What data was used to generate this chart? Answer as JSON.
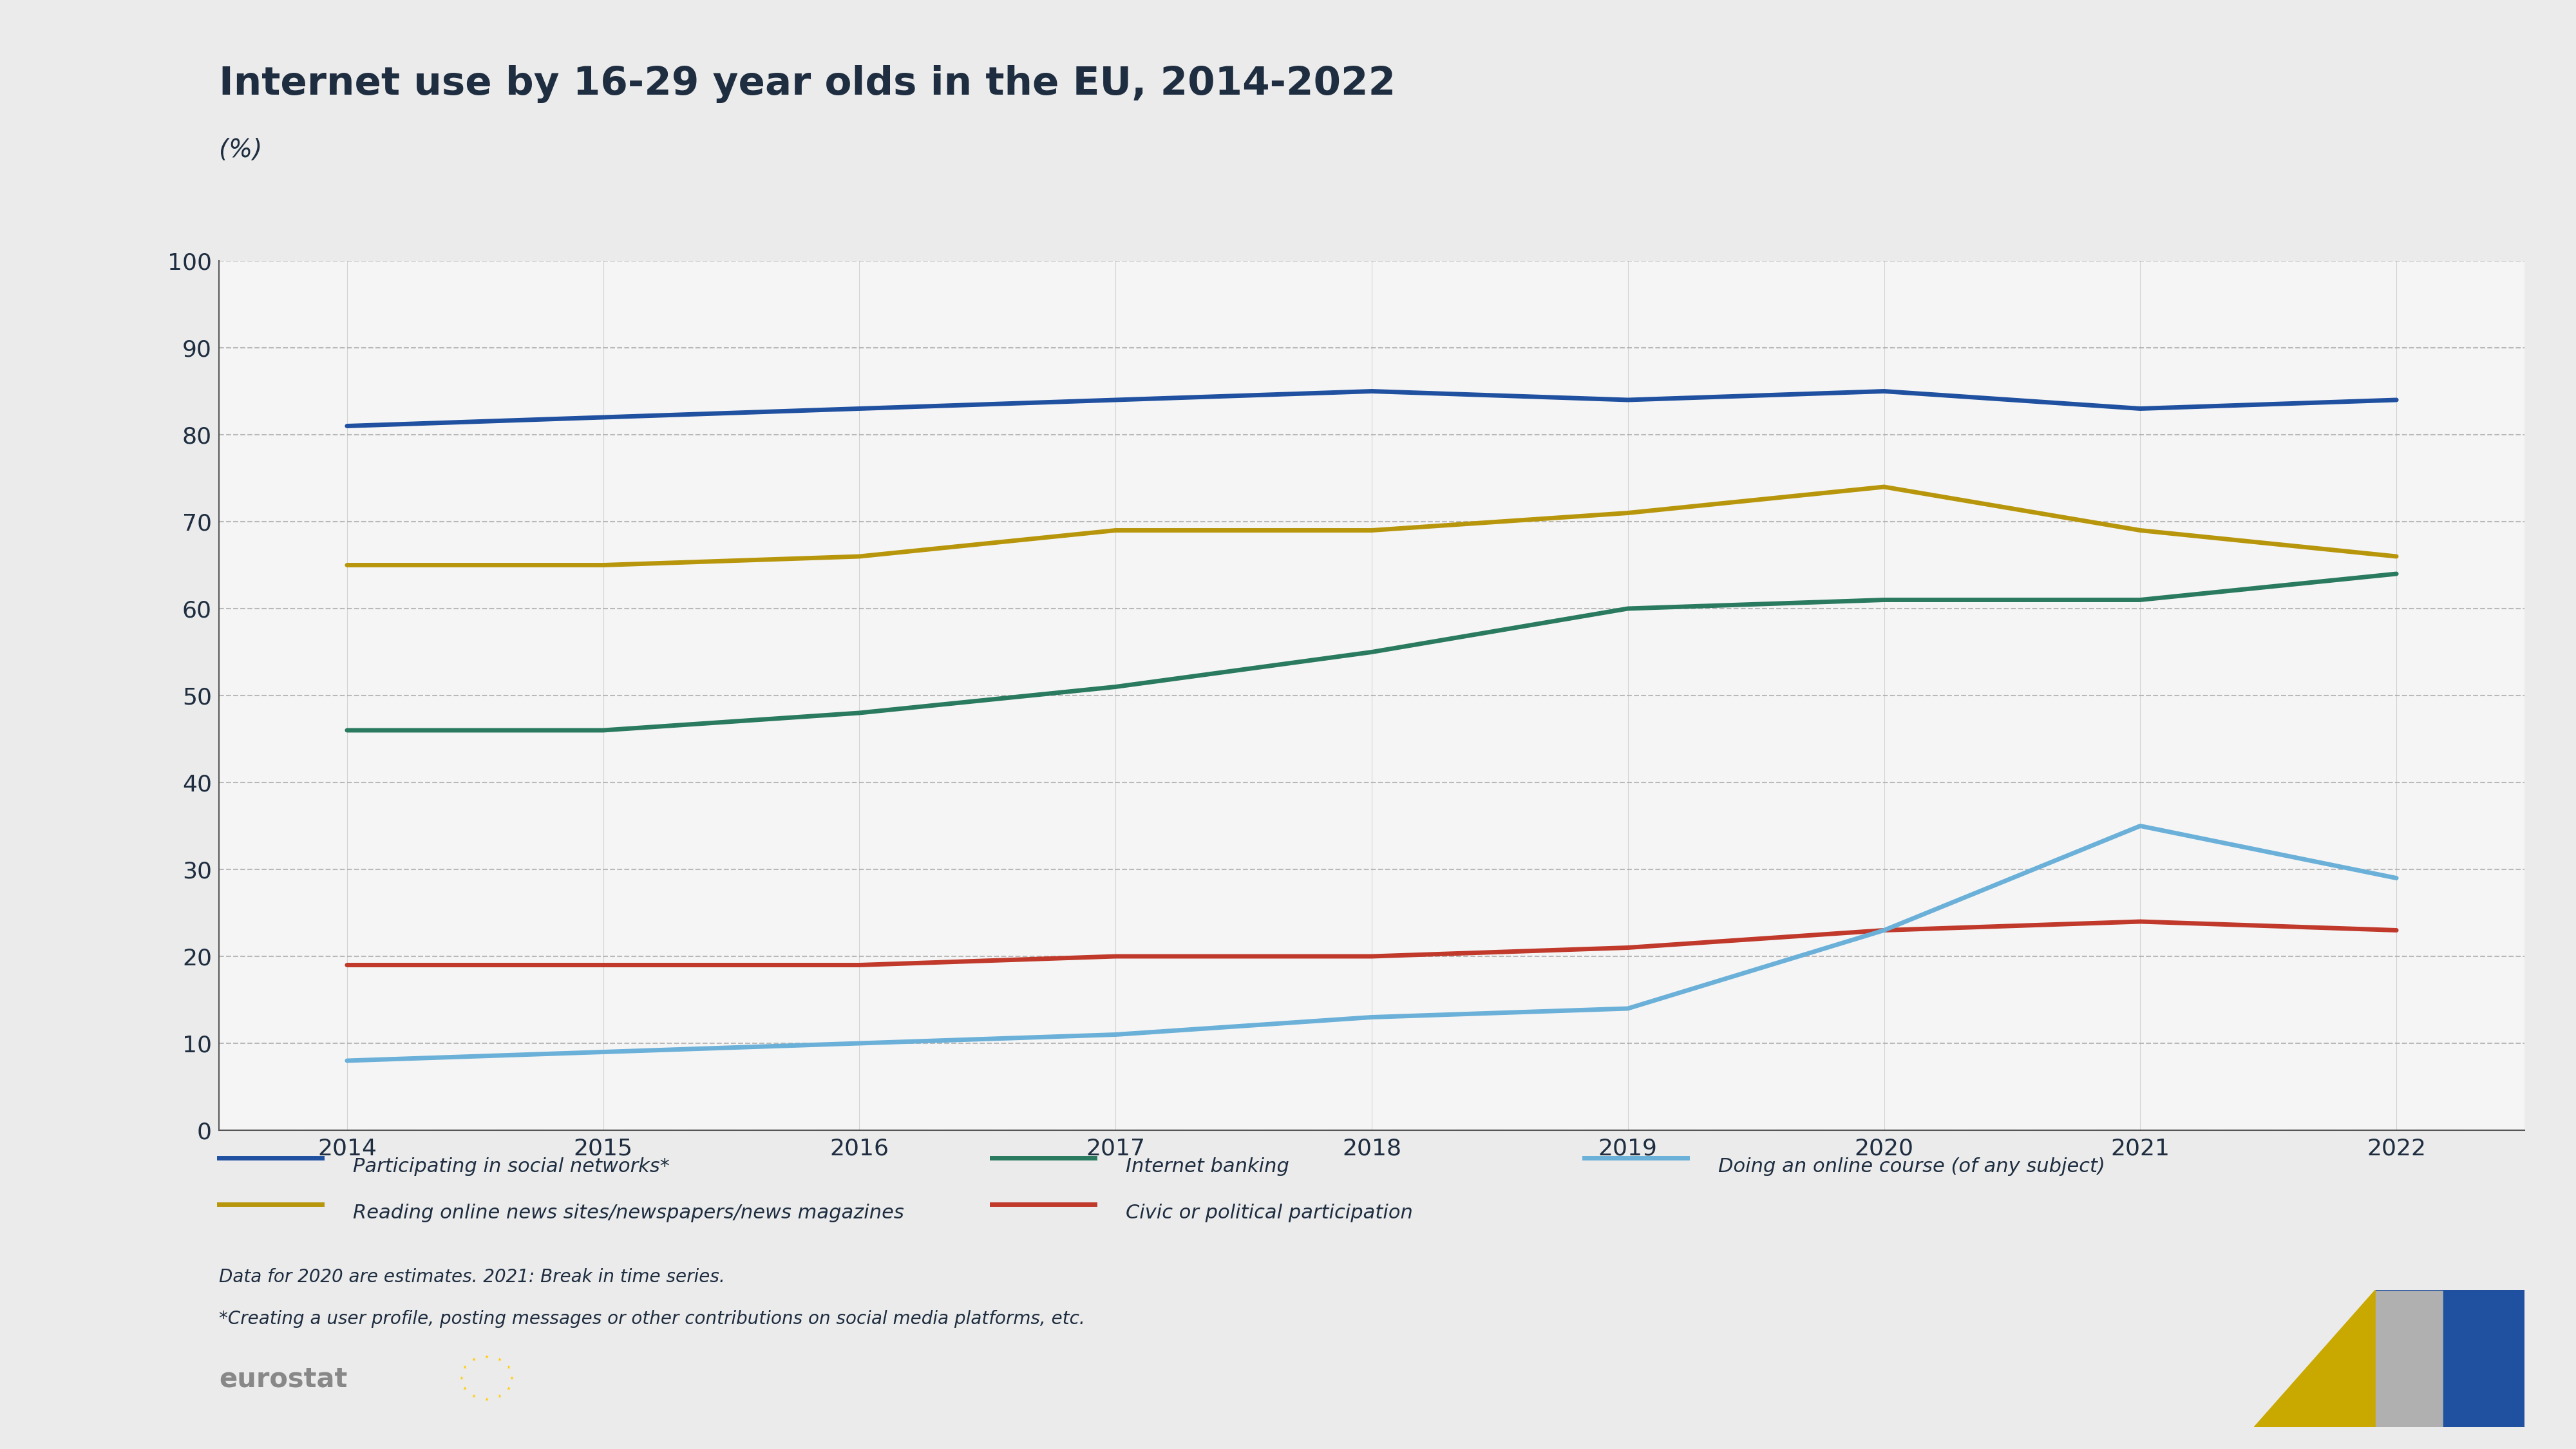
{
  "title": "Internet use by 16-29 year olds in the EU, 2014-2022",
  "subtitle": "(%)",
  "background_color": "#ebebeb",
  "plot_background_color": "#f5f5f5",
  "text_color": "#1e2d40",
  "years": [
    2014,
    2015,
    2016,
    2017,
    2018,
    2019,
    2020,
    2021,
    2022
  ],
  "social_networks": [
    81,
    82,
    83,
    84,
    85,
    84,
    85,
    83,
    84
  ],
  "internet_banking": [
    46,
    46,
    48,
    51,
    55,
    60,
    61,
    61,
    64
  ],
  "online_course": [
    8,
    9,
    10,
    11,
    13,
    14,
    23,
    35,
    29
  ],
  "reading_news": [
    65,
    65,
    66,
    69,
    69,
    71,
    74,
    69,
    66
  ],
  "civic_political": [
    19,
    19,
    19,
    20,
    20,
    21,
    23,
    24,
    23
  ],
  "social_color": "#2050a0",
  "banking_color": "#2a7a60",
  "online_course_color": "#6ab0d8",
  "reading_color": "#b8960c",
  "civic_color": "#c0392b",
  "line_width": 5,
  "ylim": [
    0,
    100
  ],
  "yticks": [
    0,
    10,
    20,
    30,
    40,
    50,
    60,
    70,
    80,
    90,
    100
  ],
  "footnote1": "Data for 2020 are estimates. 2021: Break in time series.",
  "footnote2": "*Creating a user profile, posting messages or other contributions on social media platforms, etc.",
  "legend_row1": [
    {
      "label": "Participating in social networks*",
      "color": "#2050a0"
    },
    {
      "label": "Internet banking",
      "color": "#2a7a60"
    },
    {
      "label": "Doing an online course (of any subject)",
      "color": "#6ab0d8"
    }
  ],
  "legend_row2": [
    {
      "label": "Reading online news sites/newspapers/news magazines",
      "color": "#b8960c"
    },
    {
      "label": "Civic or political participation",
      "color": "#c0392b"
    }
  ]
}
